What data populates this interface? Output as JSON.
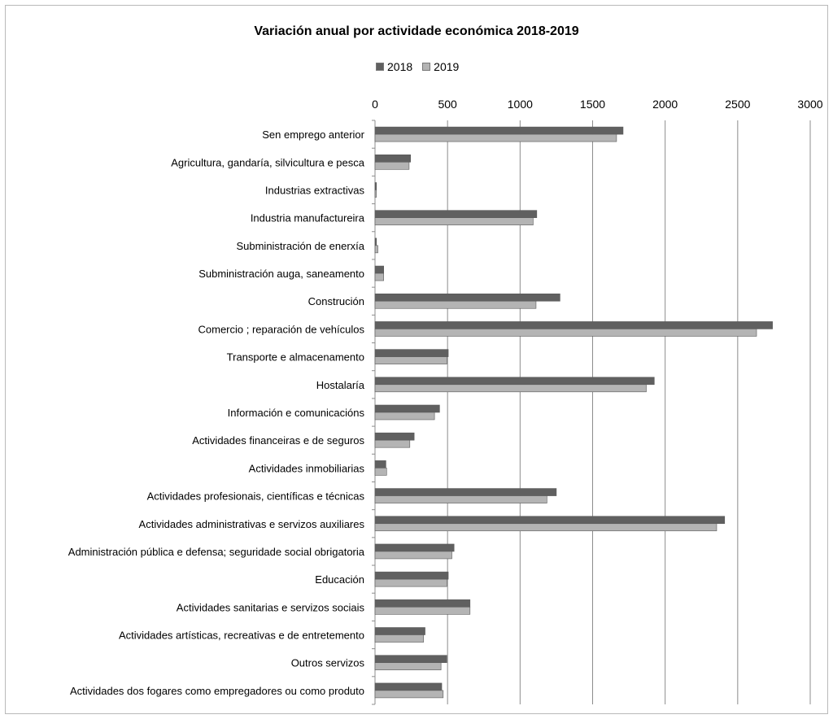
{
  "chart_data": {
    "type": "bar",
    "orientation": "horizontal",
    "title": "Variación anual por actividade económica 2018-2019",
    "xlabel": "",
    "ylabel": "",
    "xlim": [
      0,
      3000
    ],
    "xticks": [
      0,
      500,
      1000,
      1500,
      2000,
      2500,
      3000
    ],
    "grid": true,
    "legend_position": "top",
    "categories": [
      "Sen emprego anterior",
      "Agricultura, gandaría, silvicultura e pesca",
      "Industrias extractivas",
      "Industria manufactureira",
      "Subministración de enerxía",
      "Subministración auga,  saneamento",
      "Construción",
      "Comercio ; reparación de vehículos",
      "Transporte e almacenamento",
      "Hostalaría",
      "Información e comunicacións",
      "Actividades financeiras e de seguros",
      "Actividades inmobiliarias",
      "Actividades profesionais, científicas e técnicas",
      "Actividades administrativas e servizos auxiliares",
      "Administración pública e defensa; seguridade social obrigatoria",
      "Educación",
      "Actividades sanitarias e servizos sociais",
      "Actividades artísticas, recreativas e de entretemento",
      "Outros servizos",
      "Actividades dos fogares como empregadores ou como produto"
    ],
    "series": [
      {
        "name": "2018",
        "color": "#606060",
        "values": [
          1710,
          245,
          10,
          1115,
          10,
          60,
          1275,
          2740,
          505,
          1925,
          445,
          270,
          75,
          1250,
          2410,
          545,
          505,
          655,
          345,
          495,
          460
        ]
      },
      {
        "name": "2019",
        "color": "#b4b4b4",
        "values": [
          1665,
          235,
          10,
          1090,
          20,
          60,
          1110,
          2630,
          495,
          1870,
          410,
          240,
          80,
          1185,
          2355,
          530,
          495,
          655,
          335,
          455,
          470
        ]
      }
    ]
  }
}
